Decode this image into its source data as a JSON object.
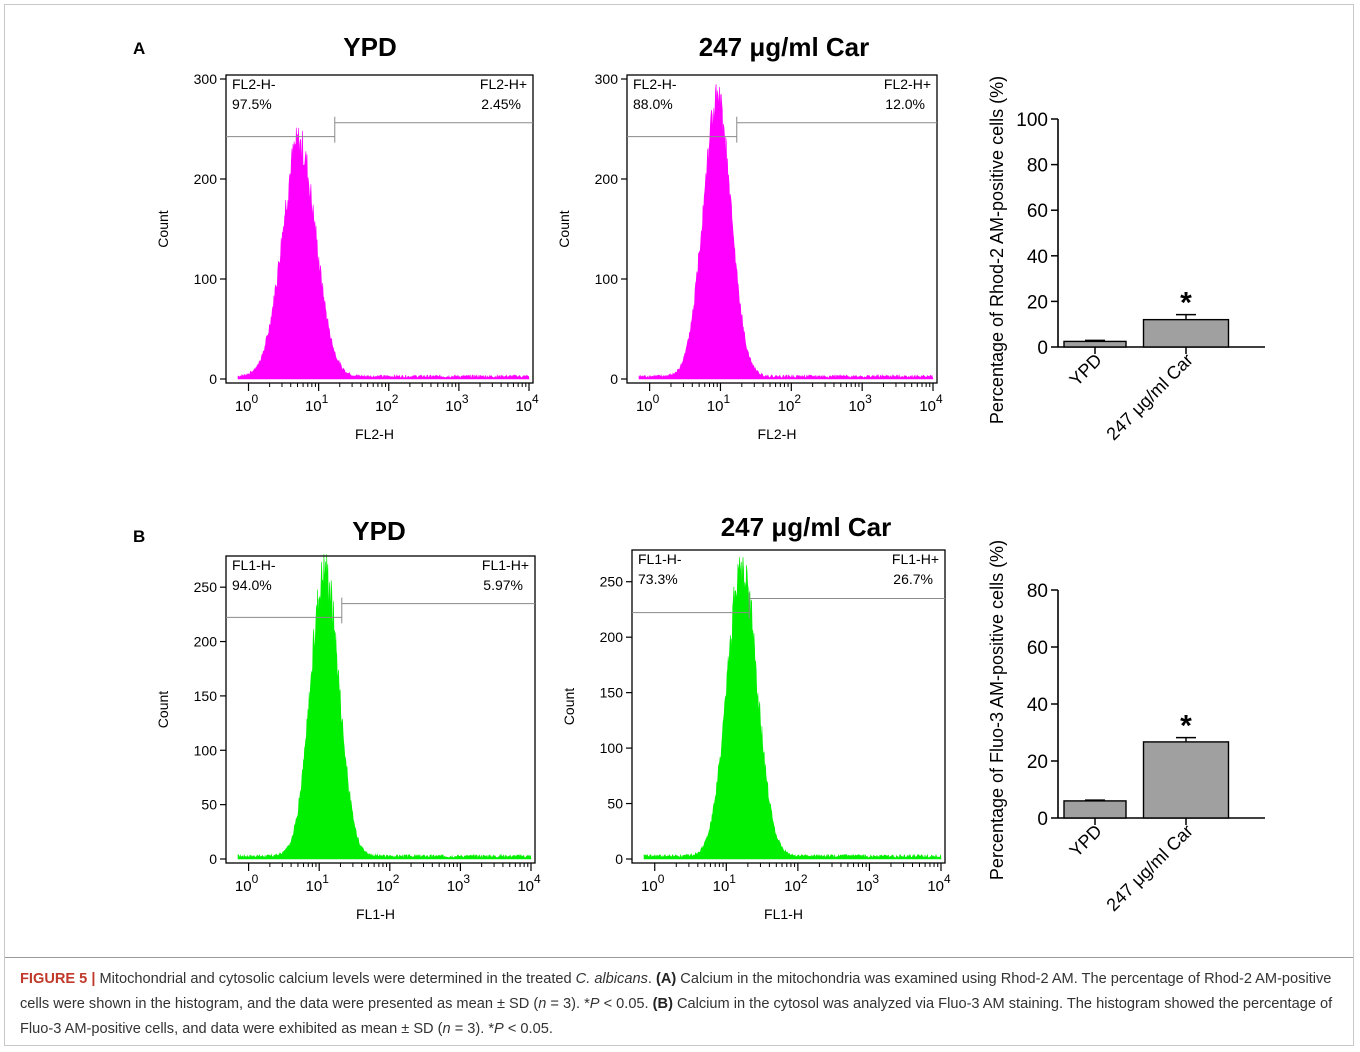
{
  "panels": [
    {
      "letter": "A",
      "histograms": [
        {
          "title": "YPD",
          "xlabel": "FL2-H",
          "ylabel": "Count",
          "gate_left_name": "FL2-H-",
          "gate_left_pct": "97.5%",
          "gate_right_name": "FL2-H+",
          "gate_right_pct": "2.45%",
          "ymax": 300,
          "yticks": [
            0,
            100,
            200,
            300
          ],
          "peak_log": 0.72,
          "peak_count": 232,
          "sigma_log": 0.24,
          "fill": "#ff00ff",
          "gate_log": 1.23
        },
        {
          "title": "247 μg/ml Car",
          "xlabel": "FL2-H",
          "ylabel": "Count",
          "gate_left_name": "FL2-H-",
          "gate_left_pct": "88.0%",
          "gate_right_name": "FL2-H+",
          "gate_right_pct": "12.0%",
          "ymax": 300,
          "yticks": [
            0,
            100,
            200,
            300
          ],
          "peak_log": 0.95,
          "peak_count": 272,
          "sigma_log": 0.2,
          "fill": "#ff00ff",
          "gate_log": 1.23
        }
      ],
      "bar": {
        "ylabel": "Percentage of Rhod-2 AM-positive cells (%)",
        "ymax": 100,
        "yticks": [
          0,
          20,
          40,
          60,
          80,
          100
        ],
        "categories": [
          "YPD",
          "247 μg/ml Car"
        ],
        "values": [
          2.45,
          12.0
        ],
        "errors": [
          0.5,
          2.2
        ],
        "sig": [
          "",
          "*"
        ]
      }
    },
    {
      "letter": "B",
      "histograms": [
        {
          "title": "YPD",
          "xlabel": "FL1-H",
          "ylabel": "Count",
          "gate_left_name": "FL1-H-",
          "gate_left_pct": "94.0%",
          "gate_right_name": "FL1-H+",
          "gate_right_pct": "5.97%",
          "ymax": 275,
          "yticks": [
            0,
            50,
            100,
            150,
            200,
            250
          ],
          "peak_log": 1.08,
          "peak_count": 263,
          "sigma_log": 0.2,
          "fill": "#00ee00",
          "gate_log": 1.32
        },
        {
          "title": "247 μg/ml Car",
          "xlabel": "FL1-H",
          "ylabel": "Count",
          "gate_left_name": "FL1-H-",
          "gate_left_pct": "73.3%",
          "gate_right_name": "FL1-H+",
          "gate_right_pct": "26.7%",
          "ymax": 275,
          "yticks": [
            0,
            50,
            100,
            150,
            200,
            250
          ],
          "peak_log": 1.22,
          "peak_count": 258,
          "sigma_log": 0.21,
          "fill": "#00ee00",
          "gate_log": 1.32
        }
      ],
      "bar": {
        "ylabel": "Percentage of Fluo-3 AM-positive cells (%)",
        "ymax": 80,
        "yticks": [
          0,
          20,
          40,
          60,
          80
        ],
        "categories": [
          "YPD",
          "247 μg/ml Car"
        ],
        "values": [
          6.0,
          26.7
        ],
        "errors": [
          0.3,
          1.5
        ],
        "sig": [
          "",
          "*"
        ]
      }
    }
  ],
  "xtick_exponents": [
    "0",
    "1",
    "2",
    "3",
    "4"
  ],
  "xtick_base": "10",
  "colors": {
    "bar_fill": "#a0a0a0",
    "gate_line": "#8a8a8a"
  },
  "chart_data": [
    {
      "type": "bar",
      "categories": [
        "YPD",
        "247 μg/ml Car"
      ],
      "values": [
        2.45,
        12.0
      ],
      "ylabel": "Percentage of Rhod-2 AM-positive cells (%)",
      "ylim": [
        0,
        100
      ]
    },
    {
      "type": "bar",
      "categories": [
        "YPD",
        "247 μg/ml Car"
      ],
      "values": [
        6.0,
        26.7
      ],
      "ylabel": "Percentage of Fluo-3 AM-positive cells (%)",
      "ylim": [
        0,
        80
      ]
    }
  ],
  "caption": {
    "label": "FIGURE 5 |",
    "s1": " Mitochondrial and cytosolic calcium levels were determined in the treated ",
    "s1_italic": "C. albicans",
    "s1_end": ". ",
    "a_tag": "(A)",
    "s2": " Calcium in the mitochondria was examined using Rhod-2 AM. The percentage of Rhod-2 AM-positive cells were shown in the histogram, and the data were presented as mean ± SD (",
    "n1": "n",
    "s3": " = 3). *",
    "p1": "P",
    "s4": " < 0.05. ",
    "b_tag": "(B)",
    "s5": " Calcium in the cytosol was analyzed via Fluo-3 AM staining. The histogram showed the percentage of Fluo-3 AM-positive cells, and data were exhibited as mean ± SD (",
    "n2": "n",
    "s6": " = 3). *",
    "p2": "P",
    "s7": " < 0.05."
  }
}
